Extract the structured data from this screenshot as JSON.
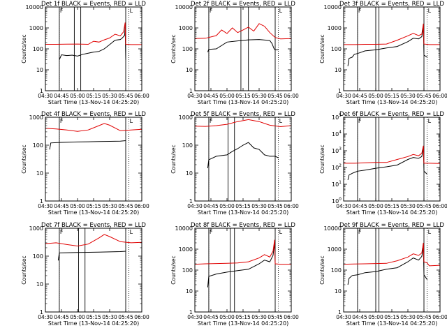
{
  "common": {
    "xlabel": "Start Time (13-Nov-14 04:25:20)",
    "ylabel": "Counts/sec",
    "xticks": [
      "04:30",
      "04:45",
      "05:00",
      "05:15",
      "05:30",
      "05:45",
      "06:00"
    ],
    "xtick_minutes": [
      0,
      15,
      30,
      45,
      60,
      75,
      90
    ],
    "xlim_minutes_after_0430": [
      0,
      90
    ],
    "yscale": "log",
    "ylim": [
      1,
      10000
    ],
    "yticks": [
      "1",
      "10",
      "100",
      "1000",
      "10000"
    ],
    "title_left_marker": "F",
    "title_right_marker": "L",
    "colors": {
      "events": "#000000",
      "lld": "#e00000",
      "axes": "#000000"
    }
  },
  "chart_data": [
    {
      "type": "line",
      "title": "Det 1f BLACK = Events, RED = LLD",
      "yticks": [
        "1",
        "10",
        "100",
        "1000",
        "10000"
      ],
      "ylim": [
        1,
        10000
      ],
      "dotted_lines_min": [
        13,
        78
      ],
      "solid_lines_min": [
        13,
        27,
        33,
        75
      ],
      "series": [
        {
          "name": "BLACK = Events",
          "x": [
            13,
            15,
            20,
            25,
            30,
            35,
            40,
            45,
            50,
            55,
            60,
            65,
            70,
            72,
            74,
            74.5,
            75
          ],
          "y": [
            30,
            52,
            48,
            50,
            45,
            55,
            62,
            70,
            75,
            100,
            160,
            260,
            280,
            340,
            450,
            1200,
            30
          ]
        },
        {
          "name": "RED = LLD",
          "x": [
            0,
            10,
            20,
            30,
            40,
            45,
            50,
            55,
            60,
            65,
            70,
            73,
            74.5,
            75,
            80,
            90
          ],
          "y": [
            165,
            165,
            168,
            170,
            165,
            230,
            210,
            270,
            330,
            500,
            420,
            650,
            1800,
            165,
            160,
            160
          ]
        }
      ]
    },
    {
      "type": "line",
      "title": "Det 2f BLACK = Events, RED = LLD",
      "yticks": [
        "1",
        "10",
        "100",
        "1000",
        "10000"
      ],
      "ylim": [
        1,
        10000
      ],
      "dotted_lines_min": [
        13,
        78
      ],
      "solid_lines_min": [
        13,
        43,
        50,
        75
      ],
      "series": [
        {
          "name": "BLACK = Events",
          "x": [
            12,
            13,
            20,
            30,
            40,
            50,
            60,
            70,
            72,
            74,
            75,
            78
          ],
          "y": [
            70,
            95,
            100,
            210,
            240,
            270,
            280,
            250,
            180,
            100,
            90,
            90
          ]
        },
        {
          "name": "RED = LLD",
          "x": [
            0,
            10,
            20,
            25,
            30,
            35,
            40,
            45,
            50,
            55,
            60,
            65,
            70,
            75,
            80,
            90
          ],
          "y": [
            310,
            320,
            430,
            800,
            540,
            1000,
            600,
            800,
            1100,
            700,
            1600,
            1200,
            600,
            350,
            300,
            310
          ]
        }
      ]
    },
    {
      "type": "line",
      "title": "Det 3f BLACK = Events, RED = LLD",
      "yticks": [
        "1",
        "10",
        "100",
        "1000",
        "10000"
      ],
      "ylim": [
        1,
        10000
      ],
      "dotted_lines_min": [
        13,
        78
      ],
      "solid_lines_min": [
        13,
        30,
        33,
        75
      ],
      "series": [
        {
          "name": "BLACK = Events",
          "x": [
            4,
            5,
            8,
            10,
            13,
            20,
            30,
            40,
            50,
            60,
            65,
            70,
            73,
            74.5,
            75,
            78
          ],
          "y": [
            15,
            35,
            40,
            55,
            60,
            80,
            90,
            110,
            130,
            220,
            320,
            300,
            380,
            1000,
            50,
            40
          ]
        },
        {
          "name": "RED = LLD",
          "x": [
            0,
            10,
            20,
            30,
            40,
            50,
            60,
            65,
            70,
            73,
            74.5,
            75,
            80,
            90
          ],
          "y": [
            160,
            160,
            165,
            165,
            170,
            260,
            420,
            550,
            430,
            500,
            1600,
            170,
            160,
            160
          ]
        }
      ]
    },
    {
      "type": "line",
      "title": "Det 4f BLACK = Events, RED = LLD",
      "yticks": [
        "1",
        "10",
        "100",
        "1000"
      ],
      "ylim": [
        1,
        1000
      ],
      "dotted_lines_min": [
        13,
        78
      ],
      "solid_lines_min": [
        13,
        75
      ],
      "series": [
        {
          "name": "BLACK = Events",
          "x": [
            4,
            5,
            13,
            30,
            50,
            70,
            75
          ],
          "y": [
            70,
            120,
            125,
            130,
            135,
            140,
            145
          ]
        },
        {
          "name": "RED = LLD",
          "x": [
            0,
            10,
            20,
            30,
            40,
            50,
            55,
            60,
            70,
            80,
            90
          ],
          "y": [
            400,
            380,
            350,
            310,
            350,
            500,
            600,
            520,
            330,
            350,
            370
          ]
        }
      ]
    },
    {
      "type": "line",
      "title": "Det 5f BLACK = Events, RED = LLD",
      "yticks": [
        "1",
        "10",
        "100",
        "1000"
      ],
      "ylim": [
        1,
        1000
      ],
      "dotted_lines_min": [
        13,
        78
      ],
      "solid_lines_min": [
        13,
        31,
        37,
        75
      ],
      "series": [
        {
          "name": "BLACK = Events",
          "x": [
            12,
            13,
            20,
            30,
            35,
            40,
            45,
            50,
            55,
            60,
            65,
            70,
            75,
            78
          ],
          "y": [
            15,
            30,
            40,
            45,
            60,
            75,
            100,
            125,
            80,
            70,
            45,
            40,
            40,
            35
          ]
        },
        {
          "name": "RED = LLD",
          "x": [
            0,
            10,
            20,
            30,
            40,
            50,
            60,
            70,
            80,
            90
          ],
          "y": [
            480,
            470,
            500,
            560,
            700,
            820,
            700,
            520,
            460,
            500
          ]
        }
      ]
    },
    {
      "type": "line",
      "title": "Det 6f BLACK = Events, RED = LLD",
      "yticks": [
        "10^0",
        "10^1",
        "10^2",
        "10^3",
        "10^4",
        "10^5"
      ],
      "ylim": [
        1,
        100000
      ],
      "dotted_lines_min": [
        13,
        78
      ],
      "solid_lines_min": [
        13,
        30,
        33,
        75
      ],
      "series": [
        {
          "name": "BLACK = Events",
          "x": [
            4,
            5,
            8,
            13,
            20,
            30,
            40,
            50,
            60,
            65,
            70,
            73,
            74.5,
            75,
            78
          ],
          "y": [
            18,
            35,
            45,
            60,
            70,
            90,
            110,
            140,
            300,
            400,
            350,
            450,
            1500,
            60,
            40
          ]
        },
        {
          "name": "RED = LLD",
          "x": [
            0,
            10,
            20,
            30,
            40,
            50,
            60,
            65,
            70,
            73,
            74.5,
            75,
            80,
            90
          ],
          "y": [
            180,
            180,
            190,
            200,
            200,
            300,
            450,
            600,
            500,
            700,
            2000,
            180,
            180,
            175
          ]
        }
      ]
    },
    {
      "type": "line",
      "title": "Det 7f BLACK = Events, RED = LLD",
      "yticks": [
        "1",
        "10",
        "100",
        "1000"
      ],
      "ylim": [
        1,
        1000
      ],
      "dotted_lines_min": [
        13,
        78
      ],
      "solid_lines_min": [
        13,
        31,
        37,
        75
      ],
      "series": [
        {
          "name": "BLACK = Events",
          "x": [
            12,
            13,
            30,
            50,
            70,
            75
          ],
          "y": [
            70,
            130,
            135,
            140,
            145,
            150
          ]
        },
        {
          "name": "RED = LLD",
          "x": [
            0,
            10,
            20,
            30,
            40,
            50,
            55,
            60,
            70,
            80,
            90
          ],
          "y": [
            280,
            300,
            260,
            230,
            270,
            450,
            600,
            500,
            330,
            300,
            310
          ]
        }
      ]
    },
    {
      "type": "line",
      "title": "Det 8f BLACK = Events, RED = LLD",
      "yticks": [
        "1",
        "10",
        "100",
        "1000",
        "10000"
      ],
      "ylim": [
        1,
        10000
      ],
      "dotted_lines_min": [
        13,
        78
      ],
      "solid_lines_min": [
        13,
        33,
        37,
        75
      ],
      "series": [
        {
          "name": "BLACK = Events",
          "x": [
            12,
            13,
            20,
            30,
            40,
            50,
            60,
            65,
            70,
            73,
            74.5,
            75
          ],
          "y": [
            15,
            50,
            65,
            80,
            95,
            110,
            200,
            300,
            250,
            500,
            2000,
            200
          ]
        },
        {
          "name": "RED = LLD",
          "x": [
            0,
            10,
            20,
            30,
            40,
            50,
            60,
            65,
            70,
            73,
            74.5,
            75,
            80,
            90
          ],
          "y": [
            190,
            200,
            205,
            210,
            220,
            250,
            380,
            550,
            420,
            800,
            2800,
            200,
            190,
            190
          ]
        }
      ]
    },
    {
      "type": "line",
      "title": "Det 9f BLACK = Events, RED = LLD",
      "yticks": [
        "1",
        "10",
        "100",
        "1000",
        "10000"
      ],
      "ylim": [
        1,
        10000
      ],
      "dotted_lines_min": [
        13,
        78
      ],
      "solid_lines_min": [
        13,
        30,
        33,
        75
      ],
      "series": [
        {
          "name": "BLACK = Events",
          "x": [
            4,
            5,
            8,
            13,
            20,
            30,
            40,
            50,
            60,
            65,
            70,
            73,
            74.5,
            75,
            78
          ],
          "y": [
            20,
            40,
            55,
            60,
            75,
            85,
            110,
            130,
            250,
            380,
            300,
            450,
            1200,
            60,
            35
          ]
        },
        {
          "name": "RED = LLD",
          "x": [
            0,
            10,
            20,
            30,
            40,
            50,
            60,
            65,
            70,
            73,
            74.5,
            75,
            78,
            80,
            90
          ],
          "y": [
            190,
            195,
            200,
            205,
            210,
            280,
            420,
            600,
            500,
            650,
            2000,
            250,
            220,
            160,
            170
          ]
        }
      ]
    }
  ]
}
